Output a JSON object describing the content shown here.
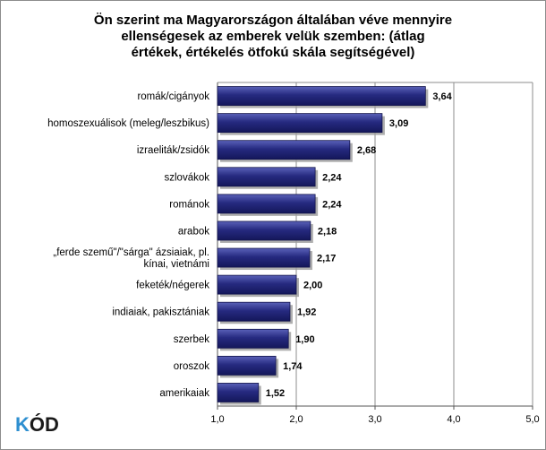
{
  "chart_data": {
    "type": "bar",
    "orientation": "horizontal",
    "title": "Ön szerint ma Magyarországon általában véve mennyire ellenségesek az emberek velük szemben: (átlag értékek, értékelés ötfokú skála segítségével)",
    "title_lines": [
      "Ön szerint ma Magyarországon általában véve mennyire",
      "ellenségesek az emberek velük szemben: (átlag",
      "értékek, értékelés ötfokú skála segítségével)"
    ],
    "categories": [
      "romák/cigányok",
      "homoszexuálisok (meleg/leszbikus)",
      "izraeliták/zsidók",
      "szlovákok",
      "románok",
      "arabok",
      "„ferde szemű\"/\"sárga\" ázsiaiak, pl. kínai, vietnámi",
      "feketék/négerek",
      "indiaiak, pakisztániak",
      "szerbek",
      "oroszok",
      "amerikaiak"
    ],
    "category_lines": [
      [
        "romák/cigányok"
      ],
      [
        "homoszexuálisok (meleg/leszbikus)"
      ],
      [
        "izraeliták/zsidók"
      ],
      [
        "szlovákok"
      ],
      [
        "románok"
      ],
      [
        "arabok"
      ],
      [
        "„ferde szemű\"/\"sárga\" ázsiaiak, pl.",
        "kínai, vietnámi"
      ],
      [
        "feketék/négerek"
      ],
      [
        "indiaiak, pakisztániak"
      ],
      [
        "szerbek"
      ],
      [
        "oroszok"
      ],
      [
        "amerikaiak"
      ]
    ],
    "values": [
      3.64,
      3.09,
      2.68,
      2.24,
      2.24,
      2.18,
      2.17,
      2.0,
      1.92,
      1.9,
      1.74,
      1.52
    ],
    "value_labels": [
      "3,64",
      "3,09",
      "2,68",
      "2,24",
      "2,24",
      "2,18",
      "2,17",
      "2,00",
      "1,92",
      "1,90",
      "1,74",
      "1,52"
    ],
    "xlim": [
      1.0,
      5.0
    ],
    "xticks": [
      1.0,
      2.0,
      3.0,
      4.0,
      5.0
    ],
    "xtick_labels": [
      "1,0",
      "2,0",
      "3,0",
      "4,0",
      "5,0"
    ],
    "grid": true,
    "legend": "none",
    "colors": {
      "bar": "#1c1f6b",
      "bar_highlight": "#5a61b8",
      "gridline": "#8c8c8c",
      "shadow": "#9a9a9a"
    }
  },
  "logo": {
    "text": "KÓD",
    "color_k": "#2e8fd0",
    "color_od": "#1a1a1a"
  }
}
